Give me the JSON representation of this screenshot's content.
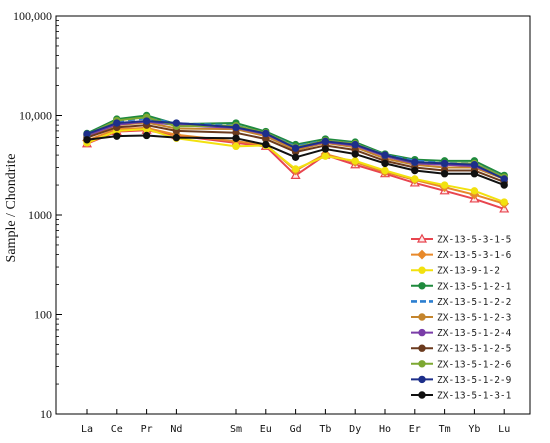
{
  "chart_data": {
    "type": "line",
    "title": "",
    "xlabel": "",
    "ylabel": "Sample / Chondrite",
    "yscale": "log",
    "ylim": [
      10,
      100000
    ],
    "yticks": [
      "10",
      "100",
      "1000",
      "10,000",
      "100,000"
    ],
    "grid": false,
    "legend_position": "bottom-right",
    "categories": [
      "La",
      "Ce",
      "Pr",
      "Nd",
      "Sm",
      "Eu",
      "Gd",
      "Tb",
      "Dy",
      "Ho",
      "Er",
      "Tm",
      "Yb",
      "Lu"
    ],
    "category_index": [
      0,
      1,
      2,
      3,
      5,
      6,
      7,
      8,
      9,
      10,
      11,
      12,
      13,
      14
    ],
    "series": [
      {
        "name": "ZX-13-5-3-1-5",
        "color": "#e8454f",
        "marker": "triangle",
        "dash": false,
        "values": [
          5200,
          6900,
          7100,
          6300,
          5300,
          4900,
          2500,
          4000,
          3200,
          2600,
          2100,
          1750,
          1450,
          1150
        ]
      },
      {
        "name": "ZX-13-5-3-1-6",
        "color": "#e8892a",
        "marker": "diamond",
        "dash": false,
        "values": [
          5600,
          7300,
          7500,
          6400,
          5500,
          5100,
          2800,
          4100,
          3400,
          2700,
          2250,
          1900,
          1600,
          1300
        ]
      },
      {
        "name": "ZX-13-9-1-2",
        "color": "#f2e10f",
        "marker": "circle",
        "dash": false,
        "values": [
          5300,
          7000,
          7300,
          5900,
          4900,
          5000,
          2900,
          3900,
          3500,
          2800,
          2300,
          2000,
          1750,
          1350
        ]
      },
      {
        "name": "ZX-13-5-1-2-1",
        "color": "#1f8a3d",
        "marker": "circle",
        "dash": false,
        "values": [
          6600,
          9200,
          10000,
          8200,
          8400,
          6900,
          5100,
          5800,
          5400,
          4100,
          3600,
          3500,
          3500,
          2500
        ]
      },
      {
        "name": "ZX-13-5-1-2-2",
        "color": "#2b7fd0",
        "marker": "none",
        "dash": true,
        "values": [
          6400,
          8800,
          9400,
          8300,
          7900,
          6600,
          4900,
          5600,
          5200,
          4000,
          3500,
          3300,
          3300,
          2400
        ]
      },
      {
        "name": "ZX-13-5-1-2-3",
        "color": "#c4852d",
        "marker": "circle",
        "dash": false,
        "values": [
          6200,
          8000,
          8500,
          7400,
          7300,
          6200,
          4500,
          5300,
          4800,
          3700,
          3200,
          3000,
          3000,
          2300
        ]
      },
      {
        "name": "ZX-13-5-1-2-4",
        "color": "#7a3da8",
        "marker": "circle",
        "dash": false,
        "values": [
          6300,
          8100,
          8700,
          8000,
          7500,
          6500,
          4700,
          5400,
          5000,
          3900,
          3300,
          3200,
          3100,
          2350
        ]
      },
      {
        "name": "ZX-13-5-1-2-5",
        "color": "#6b3a1e",
        "marker": "circle",
        "dash": false,
        "values": [
          6000,
          7600,
          8000,
          7000,
          6700,
          5800,
          4300,
          5000,
          4500,
          3500,
          3000,
          2800,
          2800,
          2150
        ]
      },
      {
        "name": "ZX-13-5-1-2-6",
        "color": "#7da832",
        "marker": "circle",
        "dash": false,
        "values": [
          6400,
          8900,
          9600,
          7800,
          7900,
          6700,
          4800,
          5600,
          5200,
          4000,
          3400,
          3300,
          3300,
          2400
        ]
      },
      {
        "name": "ZX-13-5-1-2-9",
        "color": "#1d2f8a",
        "marker": "circle",
        "dash": false,
        "values": [
          6500,
          8400,
          8800,
          8400,
          7600,
          6600,
          4700,
          5500,
          5100,
          4000,
          3400,
          3300,
          3200,
          2300
        ]
      },
      {
        "name": "ZX-13-5-1-3-1",
        "color": "#111111",
        "marker": "circle",
        "dash": false,
        "values": [
          5700,
          6200,
          6300,
          6000,
          5900,
          5100,
          3800,
          4600,
          4100,
          3300,
          2800,
          2600,
          2600,
          2000
        ]
      }
    ]
  }
}
